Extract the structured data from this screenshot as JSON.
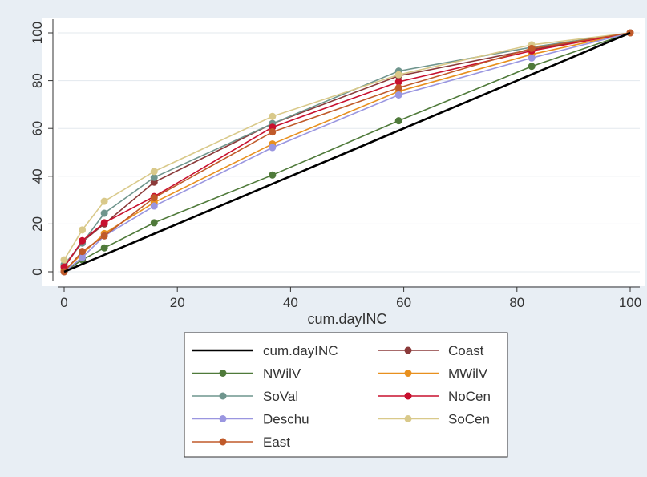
{
  "chart_data": {
    "type": "line",
    "xlabel": "cum.dayINC",
    "ylabel": "",
    "xlim": [
      0,
      100
    ],
    "ylim": [
      0,
      100
    ],
    "x_ticks": [
      0,
      20,
      40,
      60,
      80,
      100
    ],
    "y_ticks": [
      0,
      20,
      40,
      60,
      80,
      100
    ],
    "grid": "horizontal",
    "legend_position": "bottom",
    "x": [
      0,
      3.2,
      7.1,
      15.9,
      36.8,
      59.1,
      82.6,
      100
    ],
    "series": [
      {
        "name": "cum.dayINC",
        "color": "#000000",
        "marker": false,
        "values": [
          0,
          3.2,
          7.1,
          15.9,
          36.8,
          59.1,
          82.6,
          100
        ]
      },
      {
        "name": "Coast",
        "color": "#8b3a3a",
        "marker": true,
        "values": [
          2,
          12.5,
          20,
          37.5,
          62,
          82,
          93,
          100
        ]
      },
      {
        "name": "NWilV",
        "color": "#4f7a3a",
        "marker": true,
        "values": [
          0,
          5,
          10,
          20.5,
          40.5,
          63.2,
          86,
          100
        ]
      },
      {
        "name": "MWilV",
        "color": "#e8901e",
        "marker": true,
        "values": [
          0.5,
          7.5,
          16,
          29,
          53.5,
          75.5,
          91,
          100
        ]
      },
      {
        "name": "SoVal",
        "color": "#6f958d",
        "marker": true,
        "values": [
          3,
          12,
          24.5,
          39.5,
          62,
          84,
          94,
          100
        ]
      },
      {
        "name": "NoCen",
        "color": "#c8102e",
        "marker": true,
        "values": [
          2,
          13,
          20.5,
          31.5,
          60.5,
          79.5,
          92.5,
          100
        ]
      },
      {
        "name": "Deschu",
        "color": "#9a96e0",
        "marker": true,
        "values": [
          0,
          6,
          15,
          27.5,
          52,
          74,
          89.5,
          100
        ]
      },
      {
        "name": "SoCen",
        "color": "#d9c98a",
        "marker": true,
        "values": [
          5,
          17.5,
          29.5,
          42,
          65,
          82.5,
          95,
          100
        ]
      },
      {
        "name": "East",
        "color": "#c05a2a",
        "marker": true,
        "values": [
          0,
          8.5,
          15,
          31,
          58.5,
          77,
          93.5,
          100
        ]
      }
    ]
  }
}
